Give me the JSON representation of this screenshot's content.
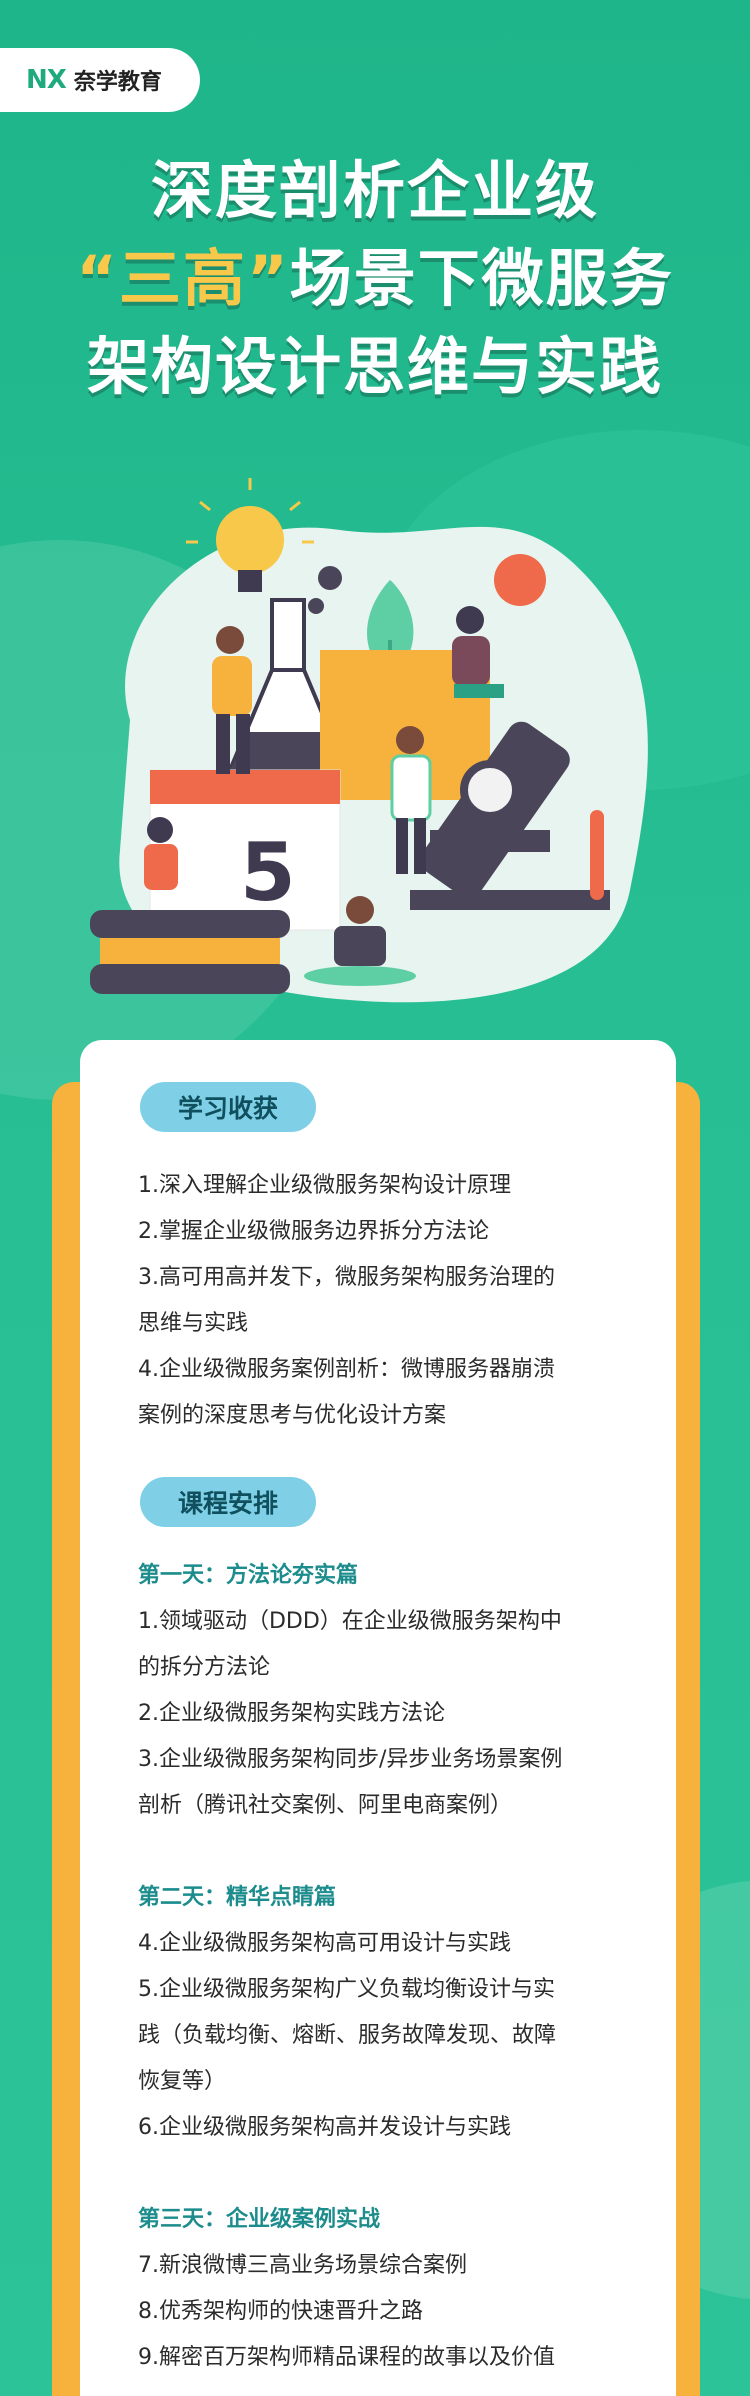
{
  "brand": {
    "mark": "NX",
    "name": "奈学教育"
  },
  "title": {
    "line1": "深度剖析企业级",
    "line2_quote_open": "“",
    "line2_highlight": "三高",
    "line2_quote_close": "”",
    "line2_rest": "场景下微服务",
    "line3": "架构设计思维与实践"
  },
  "illustration": {
    "number": "5"
  },
  "gains": {
    "label": "学习收获",
    "items": [
      "1.深入理解企业级微服务架构设计原理",
      "2.掌握企业级微服务边界拆分方法论",
      "3.高可用高并发下，微服务架构服务治理的",
      "思维与实践",
      "4.企业级微服务案例剖析：微博服务器崩溃",
      "案例的深度思考与优化设计方案"
    ]
  },
  "schedule": {
    "label": "课程安排",
    "day1": {
      "title": "第一天：方法论夯实篇",
      "items": [
        "1.领域驱动（DDD）在企业级微服务架构中",
        "的拆分方法论",
        "2.企业级微服务架构实践方法论",
        "3.企业级微服务架构同步/异步业务场景案例",
        "剖析（腾讯社交案例、阿里电商案例）"
      ]
    },
    "day2": {
      "title": "第二天：精华点睛篇",
      "items": [
        "4.企业级微服务架构高可用设计与实践",
        "5.企业级微服务架构广义负载均衡设计与实",
        "践（负载均衡、熔断、服务故障发现、故障",
        "恢复等）",
        "6.企业级微服务架构高并发设计与实践"
      ]
    },
    "day3": {
      "title": "第三天：企业级案例实战",
      "items": [
        "7.新浪微博三高业务场景综合案例",
        "8.优秀架构师的快速晋升之路",
        "9.解密百万架构师精品课程的故事以及价值"
      ]
    }
  },
  "colors": {
    "green": "#22b98e",
    "orange": "#f6b23c",
    "pill": "#7fd0e6",
    "day": "#1c8c8c"
  }
}
